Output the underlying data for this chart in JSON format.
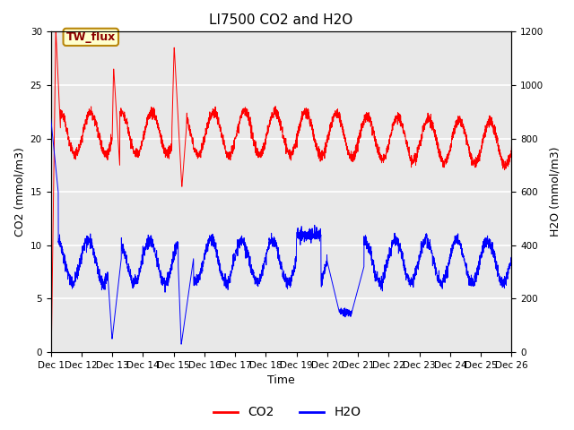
{
  "title": "LI7500 CO2 and H2O",
  "xlabel": "Time",
  "ylabel_left": "CO2 (mmol/m3)",
  "ylabel_right": "H2O (mmol/m3)",
  "ylim_left": [
    0,
    30
  ],
  "ylim_right": [
    0,
    1200
  ],
  "xtick_labels": [
    "Dec 1",
    "Dec 12",
    "Dec 13",
    "Dec 14",
    "Dec 15",
    "Dec 16",
    "Dec 17",
    "Dec 18",
    "Dec 19",
    "Dec 20",
    "Dec 21",
    "Dec 22",
    "Dec 23",
    "Dec 24",
    "Dec 25",
    "Dec 26"
  ],
  "annotation_text": "TW_flux",
  "bg_color": "#e8e8e8",
  "co2_color": "#ff0000",
  "h2o_color": "#0000ff",
  "title_fontsize": 11,
  "axis_fontsize": 9,
  "tick_fontsize": 7.5,
  "legend_fontsize": 10
}
